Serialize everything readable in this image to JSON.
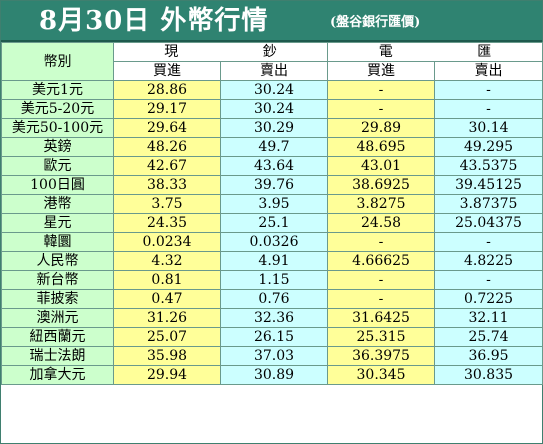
{
  "title": "8月30日 外幣行情",
  "subtitle": "(盤谷銀行匯價)",
  "headers": {
    "currency": "幣別",
    "cash": "現 鈔",
    "wire": "電 匯",
    "buy": "買進",
    "sell": "賣出"
  },
  "rows": [
    {
      "currency": "美元1元",
      "cash_buy": "28.86",
      "cash_sell": "30.24",
      "wire_buy": "-",
      "wire_sell": "-"
    },
    {
      "currency": "美元5-20元",
      "cash_buy": "29.17",
      "cash_sell": "30.24",
      "wire_buy": "-",
      "wire_sell": "-"
    },
    {
      "currency": "美元50-100元",
      "cash_buy": "29.64",
      "cash_sell": "30.29",
      "wire_buy": "29.89",
      "wire_sell": "30.14"
    },
    {
      "currency": "英鎊",
      "cash_buy": "48.26",
      "cash_sell": "49.7",
      "wire_buy": "48.695",
      "wire_sell": "49.295"
    },
    {
      "currency": "歐元",
      "cash_buy": "42.67",
      "cash_sell": "43.64",
      "wire_buy": "43.01",
      "wire_sell": "43.5375"
    },
    {
      "currency": "100日圓",
      "cash_buy": "38.33",
      "cash_sell": "39.76",
      "wire_buy": "38.6925",
      "wire_sell": "39.45125"
    },
    {
      "currency": "港幣",
      "cash_buy": "3.75",
      "cash_sell": "3.95",
      "wire_buy": "3.8275",
      "wire_sell": "3.87375"
    },
    {
      "currency": "星元",
      "cash_buy": "24.35",
      "cash_sell": "25.1",
      "wire_buy": "24.58",
      "wire_sell": "25.04375"
    },
    {
      "currency": "韓圜",
      "cash_buy": "0.0234",
      "cash_sell": "0.0326",
      "wire_buy": "-",
      "wire_sell": "-"
    },
    {
      "currency": "人民幣",
      "cash_buy": "4.32",
      "cash_sell": "4.91",
      "wire_buy": "4.66625",
      "wire_sell": "4.8225"
    },
    {
      "currency": "新台幣",
      "cash_buy": "0.81",
      "cash_sell": "1.15",
      "wire_buy": "-",
      "wire_sell": "-"
    },
    {
      "currency": "菲披索",
      "cash_buy": "0.47",
      "cash_sell": "0.76",
      "wire_buy": "-",
      "wire_sell": "0.7225"
    },
    {
      "currency": "澳洲元",
      "cash_buy": "31.26",
      "cash_sell": "32.36",
      "wire_buy": "31.6425",
      "wire_sell": "32.11"
    },
    {
      "currency": "紐西蘭元",
      "cash_buy": "25.07",
      "cash_sell": "26.15",
      "wire_buy": "25.315",
      "wire_sell": "25.74"
    },
    {
      "currency": "瑞士法朗",
      "cash_buy": "35.98",
      "cash_sell": "37.03",
      "wire_buy": "36.3975",
      "wire_sell": "36.95"
    },
    {
      "currency": "加拿大元",
      "cash_buy": "29.94",
      "cash_sell": "30.89",
      "wire_buy": "30.345",
      "wire_sell": "30.835"
    }
  ],
  "colors": {
    "title_bg": "#2f8371",
    "currency_bg": "#ccffcc",
    "buy_bg": "#ffff99",
    "sell_bg": "#ccffff"
  }
}
